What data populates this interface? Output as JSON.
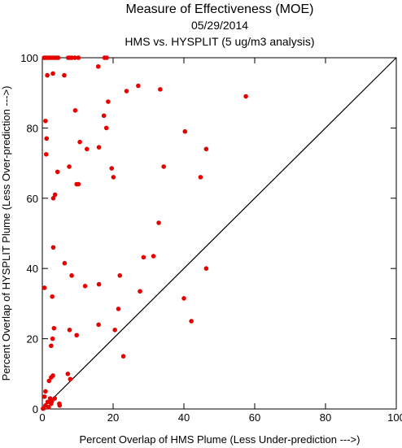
{
  "chart_data": {
    "type": "scatter",
    "title": "Measure of Effectiveness (MOE)",
    "subtitle": "05/29/2014",
    "subtitle2": "HMS vs. HYSPLIT  (5 ug/m3 analysis)",
    "xlabel": "Percent Overlap of HMS Plume (Less Under-prediction --->)",
    "ylabel": "Percent Overlap of HYSPLIT Plume (Less Over-prediction --->)",
    "xlim": [
      0,
      100
    ],
    "ylim": [
      0,
      100
    ],
    "xticks": [
      0,
      20,
      40,
      60,
      80,
      100
    ],
    "yticks": [
      0,
      20,
      40,
      60,
      80,
      100
    ],
    "grid": false,
    "reference_line": [
      [
        0,
        0
      ],
      [
        100,
        100
      ]
    ],
    "point_color": "#e60000",
    "points": [
      [
        0.5,
        100
      ],
      [
        0.8,
        100
      ],
      [
        1.2,
        100
      ],
      [
        1.8,
        100
      ],
      [
        2.3,
        100
      ],
      [
        2.8,
        100
      ],
      [
        3.3,
        100
      ],
      [
        3.9,
        100
      ],
      [
        4.5,
        100
      ],
      [
        7.3,
        100
      ],
      [
        7.8,
        100
      ],
      [
        8.4,
        100
      ],
      [
        9.2,
        100
      ],
      [
        10.2,
        100
      ],
      [
        17.6,
        100
      ],
      [
        18.2,
        100
      ],
      [
        1.4,
        95
      ],
      [
        3.0,
        95.5
      ],
      [
        6.2,
        95
      ],
      [
        15.8,
        97.5
      ],
      [
        27.1,
        92
      ],
      [
        33.3,
        91
      ],
      [
        23.8,
        90.5
      ],
      [
        57.5,
        89
      ],
      [
        18.6,
        87.5
      ],
      [
        9.3,
        85
      ],
      [
        17.4,
        83.5
      ],
      [
        0.9,
        82
      ],
      [
        18.1,
        80
      ],
      [
        40.3,
        79
      ],
      [
        1.2,
        77
      ],
      [
        10.6,
        76
      ],
      [
        16.0,
        74.5
      ],
      [
        12.6,
        74
      ],
      [
        46.3,
        74
      ],
      [
        1.1,
        72.5
      ],
      [
        7.6,
        69
      ],
      [
        34.3,
        69
      ],
      [
        19.6,
        68.5
      ],
      [
        4.3,
        67.5
      ],
      [
        20.1,
        66
      ],
      [
        44.7,
        66
      ],
      [
        9.7,
        64
      ],
      [
        10.2,
        64
      ],
      [
        3.6,
        61
      ],
      [
        3.1,
        60
      ],
      [
        32.9,
        53
      ],
      [
        3.1,
        46
      ],
      [
        31.4,
        43.5
      ],
      [
        28.6,
        43.2
      ],
      [
        6.3,
        41.5
      ],
      [
        46.3,
        40
      ],
      [
        21.9,
        38
      ],
      [
        8.3,
        38
      ],
      [
        0.6,
        34.5
      ],
      [
        12.1,
        35
      ],
      [
        16.0,
        35.5
      ],
      [
        27.6,
        33.5
      ],
      [
        2.8,
        32
      ],
      [
        40.0,
        31.5
      ],
      [
        21.5,
        28.5
      ],
      [
        42.1,
        25
      ],
      [
        15.9,
        24
      ],
      [
        3.3,
        23
      ],
      [
        7.7,
        22.5
      ],
      [
        20.5,
        22.5
      ],
      [
        9.7,
        21
      ],
      [
        2.9,
        20
      ],
      [
        2.5,
        18
      ],
      [
        22.9,
        15
      ],
      [
        7.2,
        10
      ],
      [
        3.0,
        9.5
      ],
      [
        2.5,
        9
      ],
      [
        7.9,
        8.5
      ],
      [
        1.9,
        8
      ],
      [
        0.9,
        5
      ],
      [
        0.6,
        3.5
      ],
      [
        2.2,
        3
      ],
      [
        3.5,
        3
      ],
      [
        4.8,
        1.5
      ],
      [
        4.9,
        1
      ],
      [
        2.5,
        1.5
      ],
      [
        1.8,
        0.5
      ],
      [
        0.4,
        0.2
      ],
      [
        0.2,
        0.1
      ],
      [
        1.5,
        2
      ],
      [
        2.7,
        2.2
      ],
      [
        0.9,
        1
      ]
    ]
  }
}
